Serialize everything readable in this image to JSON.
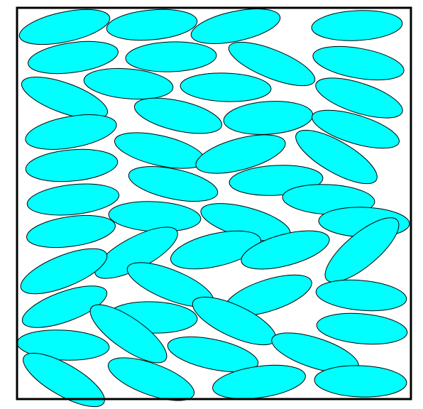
{
  "figure": {
    "description_free": true,
    "fill_color": "#00FFFF",
    "stroke_color": "#000000",
    "background": "#FFFFFF",
    "ellipse_count": 52
  },
  "ellipses": [
    {
      "id": 1,
      "angle": -12
    },
    {
      "id": 2,
      "angle": -5
    },
    {
      "id": 3,
      "angle": -12
    },
    {
      "id": 4,
      "angle": -3
    },
    {
      "id": 5,
      "angle": -8
    },
    {
      "id": 6,
      "angle": -2
    },
    {
      "id": 7,
      "angle": 22
    },
    {
      "id": 8,
      "angle": 10
    },
    {
      "id": 9,
      "angle": 5
    },
    {
      "id": 10,
      "angle": 2
    },
    {
      "id": 11,
      "angle": 20
    },
    {
      "id": 12,
      "angle": 18
    },
    {
      "id": 13,
      "angle": 13
    },
    {
      "id": 14,
      "angle": -4
    },
    {
      "id": 15,
      "angle": -10
    },
    {
      "id": 16,
      "angle": 17
    },
    {
      "id": 17,
      "angle": 13
    },
    {
      "id": 18,
      "angle": -15
    },
    {
      "id": 19,
      "angle": -5
    },
    {
      "id": 20,
      "angle": 30
    },
    {
      "id": 21,
      "angle": 12
    },
    {
      "id": 22,
      "angle": -3
    },
    {
      "id": 23,
      "angle": -6
    },
    {
      "id": 24,
      "angle": 3
    },
    {
      "id": 25,
      "angle": 3
    },
    {
      "id": 26,
      "angle": 15
    },
    {
      "id": 27,
      "angle": -8
    },
    {
      "id": 28,
      "angle": 2
    },
    {
      "id": 29,
      "angle": -28
    },
    {
      "id": 30,
      "angle": -13
    },
    {
      "id": 31,
      "angle": -15
    },
    {
      "id": 32,
      "angle": -40
    },
    {
      "id": 33,
      "angle": -22
    },
    {
      "id": 34,
      "angle": 22
    },
    {
      "id": 35,
      "angle": -18
    },
    {
      "id": 36,
      "angle": 5
    },
    {
      "id": 37,
      "angle": -20
    },
    {
      "id": 38,
      "angle": 2
    },
    {
      "id": 39,
      "angle": 25
    },
    {
      "id": 40,
      "angle": 5
    },
    {
      "id": 41,
      "angle": 3
    },
    {
      "id": 42,
      "angle": 35
    },
    {
      "id": 43,
      "angle": 12
    },
    {
      "id": 44,
      "angle": 18
    },
    {
      "id": 45,
      "angle": 30
    },
    {
      "id": 46,
      "angle": 20
    },
    {
      "id": 47,
      "angle": -8
    },
    {
      "id": 48,
      "angle": 2
    },
    {
      "id": 49,
      "angle": 5
    },
    {
      "id": 50,
      "angle": 5
    },
    {
      "id": 51,
      "angle": -2
    },
    {
      "id": 52,
      "angle": -5
    }
  ]
}
